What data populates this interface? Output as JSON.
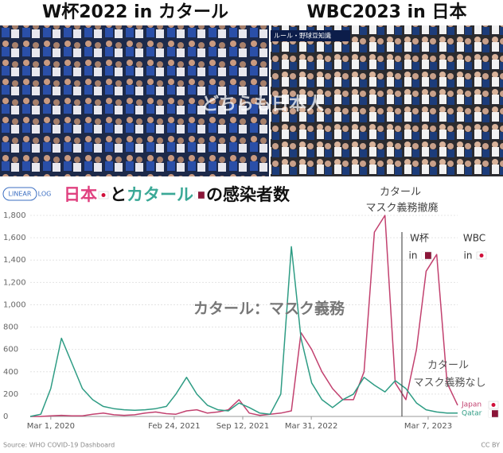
{
  "header": {
    "left_title": "W杯2022 in カタール",
    "right_title": "WBC2023 in 日本",
    "photo_overlay": "どちらも日本人",
    "scoreboard": "ルール・野球豆知識"
  },
  "controls": [
    "LINEAR",
    "LOG"
  ],
  "chart_data": {
    "type": "line",
    "title_parts": [
      {
        "text": "日本",
        "color": "#e0407f"
      },
      {
        "text": "と",
        "color": "#111111"
      },
      {
        "text": "カタール",
        "color": "#3aa896"
      },
      {
        "text": "の感染者数",
        "color": "#111111"
      }
    ],
    "x": [
      "2020-01-01",
      "2020-02-01",
      "2020-03-01",
      "2020-04-01",
      "2020-05-01",
      "2020-06-01",
      "2020-07-01",
      "2020-08-01",
      "2020-09-01",
      "2020-10-01",
      "2020-11-01",
      "2020-12-01",
      "2021-01-01",
      "2021-02-01",
      "2021-03-01",
      "2021-04-01",
      "2021-05-01",
      "2021-06-01",
      "2021-07-01",
      "2021-08-01",
      "2021-09-01",
      "2021-10-01",
      "2021-11-01",
      "2021-12-01",
      "2022-01-01",
      "2022-02-01",
      "2022-03-01",
      "2022-04-01",
      "2022-05-01",
      "2022-06-01",
      "2022-07-01",
      "2022-08-01",
      "2022-09-01",
      "2022-10-01",
      "2022-11-01",
      "2022-12-01",
      "2023-01-01",
      "2023-02-01",
      "2023-03-01",
      "2023-04-01",
      "2023-05-01",
      "2023-06-01"
    ],
    "series": [
      {
        "name": "Japan",
        "color": "#c2416f",
        "values": [
          0,
          0,
          5,
          10,
          5,
          5,
          20,
          30,
          15,
          10,
          15,
          30,
          40,
          25,
          20,
          50,
          60,
          30,
          40,
          60,
          150,
          30,
          10,
          20,
          30,
          50,
          750,
          600,
          400,
          250,
          150,
          150,
          400,
          1650,
          1800,
          300,
          150,
          600,
          1300,
          1450,
          300,
          100
        ]
      },
      {
        "name": "Qatar",
        "color": "#2e9c84",
        "values": [
          0,
          20,
          250,
          700,
          480,
          250,
          150,
          90,
          70,
          60,
          55,
          60,
          70,
          90,
          200,
          350,
          200,
          100,
          60,
          50,
          120,
          80,
          30,
          20,
          200,
          1520,
          700,
          300,
          150,
          80,
          150,
          200,
          350,
          280,
          220,
          320,
          250,
          120,
          60,
          40,
          30,
          30
        ]
      }
    ],
    "xlim": [
      "2020-01-01",
      "2023-06-01"
    ],
    "xticks": [
      {
        "value": "2020-03-01",
        "label": "Mar 1, 2020"
      },
      {
        "value": "2021-02-24",
        "label": "Feb 24, 2021"
      },
      {
        "value": "2021-09-12",
        "label": "Sep 12, 2021"
      },
      {
        "value": "2022-03-31",
        "label": "Mar 31, 2022"
      },
      {
        "value": "2023-03-07",
        "label": "Mar 7, 2023"
      }
    ],
    "ylim": [
      0,
      1800
    ],
    "yticks": [
      0,
      200,
      400,
      600,
      800,
      {
        "value": 1000,
        "label": "1,000"
      },
      {
        "value": 1200,
        "label": "1,200"
      },
      {
        "value": 1400,
        "label": "1,400"
      },
      {
        "value": 1600,
        "label": "1,600"
      },
      {
        "value": 1800,
        "label": "1,800"
      }
    ],
    "grid": true,
    "annotations": [
      "カタール",
      "マスク義務撤廃",
      "W杯",
      "in",
      "WBC",
      "in",
      "カタール：マスク義務",
      "カタール",
      "マスク義務なし"
    ],
    "source": "Source: WHO COVID-19 Dashboard",
    "license": "CC BY"
  }
}
